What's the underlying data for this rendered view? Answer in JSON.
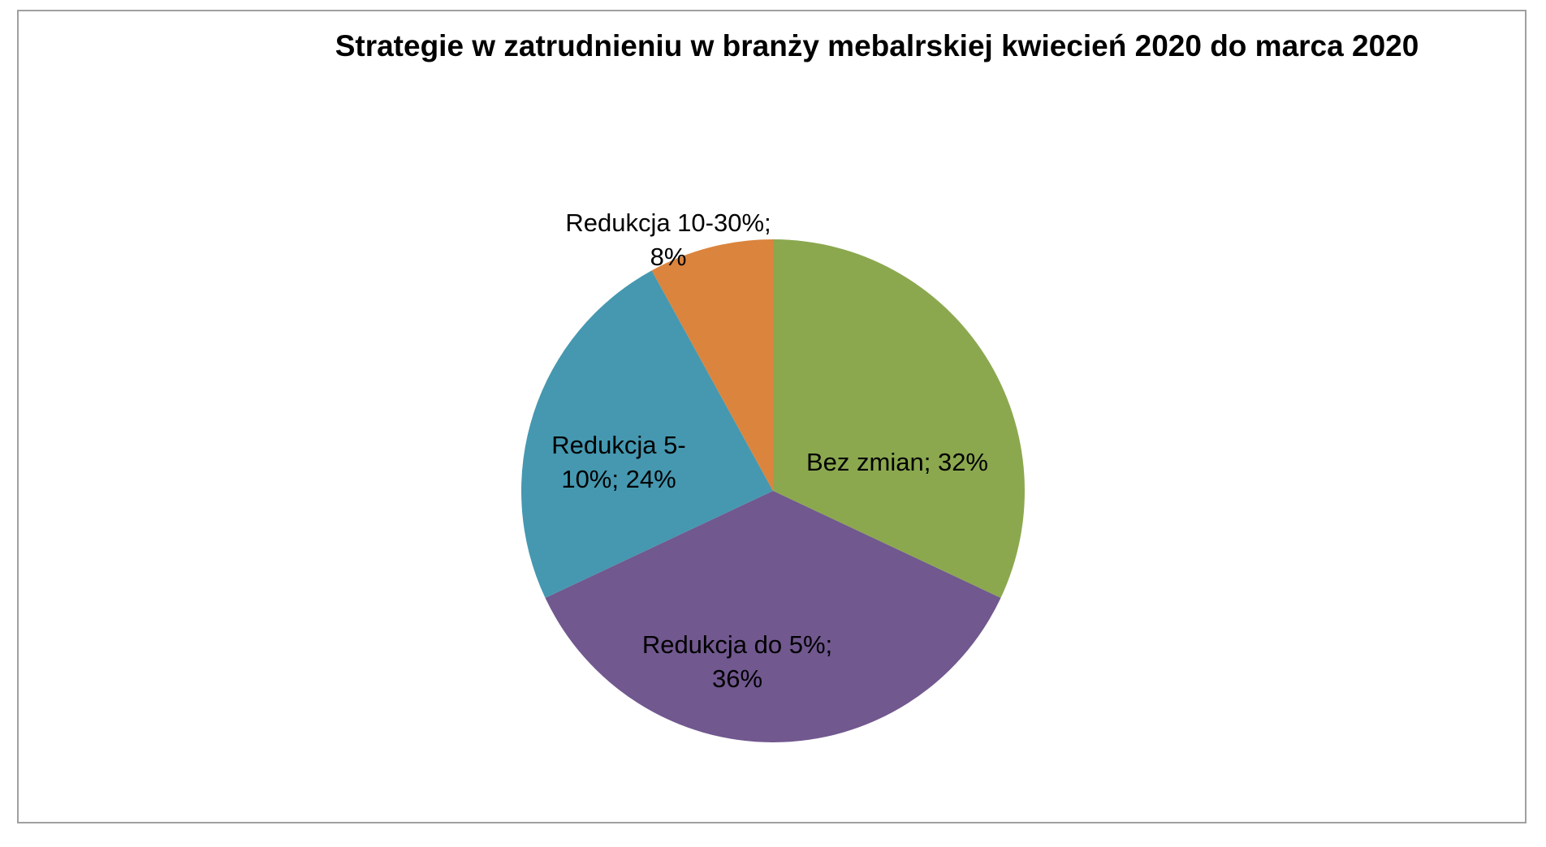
{
  "chart_data": {
    "type": "pie",
    "title": "Strategie w zatrudnieniu  w branży mebalrskiej kwiecień 2020 do marca 2020",
    "values": [
      32,
      36,
      24,
      8
    ],
    "value_labels": [
      "Bez zmian; 32%",
      "Redukcja do 5%; 36%",
      "Redukcja 5-10%; 24%",
      "Redukcja 10-30%; 8%"
    ],
    "colors": [
      "#8ba84f",
      "#71588f",
      "#4598b0",
      "#db843d"
    ]
  }
}
